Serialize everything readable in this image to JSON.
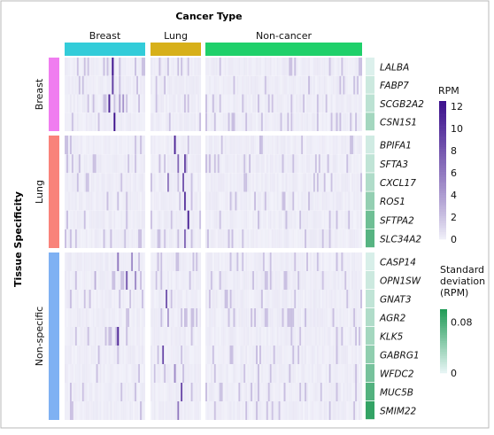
{
  "chart_data": {
    "type": "heatmap",
    "column_group_title": "Cancer Type",
    "column_groups": [
      {
        "name": "Breast",
        "color": "#33ccd9",
        "n_samples": 46
      },
      {
        "name": "Lung",
        "color": "#d7b01a",
        "n_samples": 30
      },
      {
        "name": "Non-cancer",
        "color": "#1fd06a",
        "n_samples": 90
      }
    ],
    "row_group_title": "Tissue Specificity",
    "row_groups": [
      {
        "name": "Breast",
        "color": "#f07df0",
        "genes": [
          "LALBA",
          "FABP7",
          "SCGB2A2",
          "CSN1S1"
        ]
      },
      {
        "name": "Lung",
        "color": "#f9837a",
        "genes": [
          "BPIFA1",
          "SFTA3",
          "CXCL17",
          "ROS1",
          "SFTPA2",
          "SLC34A2"
        ]
      },
      {
        "name": "Non-specific",
        "color": "#7fb1f3",
        "genes": [
          "CASP14",
          "OPN1SW",
          "GNAT3",
          "AGR2",
          "KLK5",
          "GABRG1",
          "WFDC2",
          "MUC5B",
          "SMIM22"
        ]
      }
    ],
    "color_scale": {
      "title": "RPM",
      "min": 0,
      "max": 12.5,
      "ticks": [
        0,
        2,
        4,
        6,
        8,
        10,
        12
      ],
      "low_color": "#f2f2fa",
      "high_color": "#3b0f8c"
    },
    "sd_scale": {
      "title_lines": [
        "Standard",
        "deviation",
        "(RPM)"
      ],
      "min": 0,
      "max": 0.1,
      "ticks": [
        0,
        0.08
      ],
      "tick_labels": [
        "0",
        "0.08"
      ],
      "low_color": "#e8f6f6",
      "high_color": "#1f9a55"
    },
    "gene_sd": {
      "LALBA": 0.006,
      "FABP7": 0.014,
      "SCGB2A2": 0.022,
      "CSN1S1": 0.034,
      "BPIFA1": 0.012,
      "SFTA3": 0.02,
      "CXCL17": 0.028,
      "ROS1": 0.042,
      "SFTPA2": 0.06,
      "SLC34A2": 0.072,
      "CASP14": 0.008,
      "OPN1SW": 0.014,
      "GNAT3": 0.02,
      "AGR2": 0.028,
      "KLK5": 0.034,
      "GABRG1": 0.044,
      "WFDC2": 0.056,
      "MUC5B": 0.074,
      "SMIM22": 0.09
    },
    "hotspots": [
      {
        "gene": "LALBA",
        "group": "Breast",
        "sample": 27,
        "value": 12.5
      },
      {
        "gene": "FABP7",
        "group": "Breast",
        "sample": 27,
        "value": 9.5
      },
      {
        "gene": "SCGB2A2",
        "group": "Breast",
        "sample": 25,
        "value": 11
      },
      {
        "gene": "SCGB2A2",
        "group": "Breast",
        "sample": 31,
        "value": 4
      },
      {
        "gene": "SCGB2A2",
        "group": "Breast",
        "sample": 33,
        "value": 4.5
      },
      {
        "gene": "CSN1S1",
        "group": "Breast",
        "sample": 28,
        "value": 12.5
      },
      {
        "gene": "BPIFA1",
        "group": "Lung",
        "sample": 14,
        "value": 11
      },
      {
        "gene": "SFTA3",
        "group": "Lung",
        "sample": 16,
        "value": 7
      },
      {
        "gene": "SFTA3",
        "group": "Lung",
        "sample": 20,
        "value": 9
      },
      {
        "gene": "CXCL17",
        "group": "Lung",
        "sample": 10,
        "value": 6
      },
      {
        "gene": "CXCL17",
        "group": "Lung",
        "sample": 19,
        "value": 8
      },
      {
        "gene": "ROS1",
        "group": "Lung",
        "sample": 20,
        "value": 10
      },
      {
        "gene": "SFTPA2",
        "group": "Lung",
        "sample": 22,
        "value": 12
      },
      {
        "gene": "SLC34A2",
        "group": "Lung",
        "sample": 20,
        "value": 7
      },
      {
        "gene": "CASP14",
        "group": "Breast",
        "sample": 30,
        "value": 6
      },
      {
        "gene": "CASP14",
        "group": "Breast",
        "sample": 38,
        "value": 5
      },
      {
        "gene": "OPN1SW",
        "group": "Breast",
        "sample": 35,
        "value": 8
      },
      {
        "gene": "OPN1SW",
        "group": "Breast",
        "sample": 40,
        "value": 5
      },
      {
        "gene": "OPN1SW",
        "group": "Breast",
        "sample": 17,
        "value": 3
      },
      {
        "gene": "GNAT3",
        "group": "Lung",
        "sample": 9,
        "value": 8
      },
      {
        "gene": "AGR2",
        "group": "Lung",
        "sample": 10,
        "value": 4
      },
      {
        "gene": "KLK5",
        "group": "Breast",
        "sample": 30,
        "value": 11
      },
      {
        "gene": "GABRG1",
        "group": "Lung",
        "sample": 7,
        "value": 9
      },
      {
        "gene": "WFDC2",
        "group": "Lung",
        "sample": 14,
        "value": 5
      },
      {
        "gene": "MUC5B",
        "group": "Lung",
        "sample": 18,
        "value": 9
      },
      {
        "gene": "SMIM22",
        "group": "Lung",
        "sample": 16,
        "value": 6
      }
    ]
  }
}
